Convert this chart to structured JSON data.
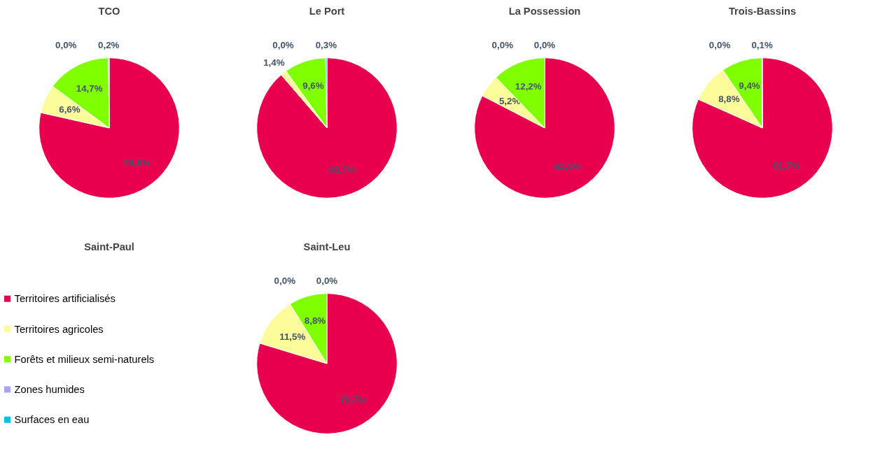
{
  "chart_data": [
    {
      "type": "pie",
      "title": "TCO",
      "legend": "bottom left",
      "categories": [
        "Territoires artificialisés",
        "Territoires agricoles",
        "Forêts et milieux semi-naturels",
        "Zones humides",
        "Surfaces en eau"
      ],
      "values": [
        78.6,
        6.6,
        14.7,
        0.0,
        0.2
      ],
      "value_labels": [
        "78,6%",
        "6,6%",
        "14,7%",
        "0,0%",
        "0,2%"
      ],
      "colors": [
        "#e8004f",
        "#fcfc9a",
        "#80ff00",
        "#a6a6f0",
        "#00c0e8"
      ]
    },
    {
      "type": "pie",
      "title": "Le Port",
      "categories": [
        null,
        null,
        null,
        null,
        null
      ],
      "values": [
        88.7,
        1.4,
        9.6,
        0.0,
        0.3
      ],
      "value_labels": [
        "88,7%",
        "1,4%",
        "9,6%",
        "0,0%",
        "0,3%"
      ],
      "colors": [
        "#e8004f",
        "#fcfc9a",
        "#80ff00",
        "#a6a6f0",
        "#00c0e8"
      ]
    },
    {
      "type": "pie",
      "title": "La Possession",
      "categories": [
        null,
        null,
        null,
        null,
        null
      ],
      "values": [
        82.6,
        5.2,
        12.2,
        0.0,
        0.0
      ],
      "value_labels": [
        "82,6%",
        "5,2%",
        "12,2%",
        "0,0%",
        "0,0%"
      ],
      "colors": [
        "#e8004f",
        "#fcfc9a",
        "#80ff00",
        "#a6a6f0",
        "#00c0e8"
      ]
    },
    {
      "type": "pie",
      "title": "Trois-Bassins",
      "categories": [
        null,
        null,
        null,
        null,
        null
      ],
      "values": [
        81.7,
        8.8,
        9.4,
        0.0,
        0.1
      ],
      "value_labels": [
        "81,7%",
        "8,8%",
        "9,4%",
        "0,0%",
        "0,1%"
      ],
      "colors": [
        "#e8004f",
        "#fcfc9a",
        "#80ff00",
        "#a6a6f0",
        "#00c0e8"
      ]
    },
    {
      "type": "other",
      "title": "Saint-Paul"
    },
    {
      "type": "pie",
      "title": "Saint-Leu",
      "categories": [
        null,
        null,
        null,
        null,
        null
      ],
      "values": [
        79.7,
        11.5,
        8.8,
        0.0,
        0.0
      ],
      "value_labels": [
        "79,7%",
        "11,5%",
        "8,8%",
        "0,0%",
        "0,0%"
      ],
      "colors": [
        "#e8004f",
        "#fcfc9a",
        "#80ff00",
        "#a6a6f0",
        "#00c0e8"
      ]
    }
  ]
}
